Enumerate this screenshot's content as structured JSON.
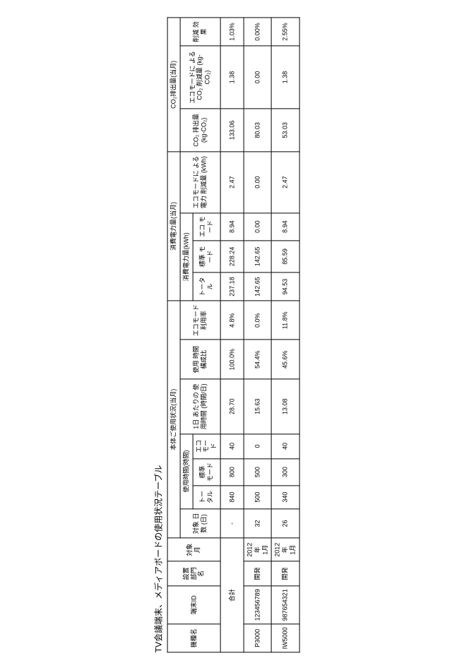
{
  "title": "TV会議端末、メディアボードの使用状況テーブル",
  "headers": {
    "model": "機種名",
    "terminal_id": "端末ID",
    "dept": "設置\n部門名",
    "month": "対象月",
    "usage_group": "本体ご使用状況(当月)",
    "days": "対象\n日数\n(日)",
    "hours_group": "使用時間(時間)",
    "total": "トータル",
    "std_mode": "標準\nモード",
    "eco_mode": "エコ\nモード",
    "per_day": "1日\nあたりの\n使用時間\n(時間/日)",
    "ratio": "使用\n時間\n構成比",
    "eco_rate": "エコモード\n利用率",
    "power_group": "消費電力量(当月)",
    "power_kwh": "消費電力量(kWh)",
    "power_save": "エコモードに\nよる電力\n削減量\n(kWh)",
    "co2_group": "CO₂排出量(当月)",
    "co2_emit": "CO₂\n排出量\n(kg-CO₂)",
    "co2_save": "エコモードに\nよるCO₂\n削減量\n(kg-CO₂)",
    "reduce_effect": "削減\n効果"
  },
  "rows": [
    {
      "model": "合計",
      "terminal_id": "",
      "dept": "",
      "month": "",
      "days": "-",
      "h_total": "840",
      "h_std": "800",
      "h_eco": "40",
      "per_day": "28.70",
      "ratio": "100.0%",
      "eco_rate": "4.8%",
      "p_total": "237.18",
      "p_std": "228.24",
      "p_eco": "8.94",
      "p_save": "2.47",
      "co2": "133.06",
      "co2_save": "1.38",
      "effect": "1.03%",
      "merged": true
    },
    {
      "model": "P3000",
      "terminal_id": "123456789",
      "dept": "開発",
      "month": "2012年\n1月",
      "days": "32",
      "h_total": "500",
      "h_std": "500",
      "h_eco": "0",
      "per_day": "15.63",
      "ratio": "54.4%",
      "eco_rate": "0.0%",
      "p_total": "142.65",
      "p_std": "142.65",
      "p_eco": "0.00",
      "p_save": "0.00",
      "co2": "80.03",
      "co2_save": "0.00",
      "effect": "0.00%"
    },
    {
      "model": "IW5000",
      "terminal_id": "987654321",
      "dept": "開発",
      "month": "2012年\n1月",
      "days": "26",
      "h_total": "340",
      "h_std": "300",
      "h_eco": "40",
      "per_day": "13.08",
      "ratio": "45.6%",
      "eco_rate": "11.8%",
      "p_total": "94.53",
      "p_std": "85.59",
      "p_eco": "8.94",
      "p_save": "2.47",
      "co2": "53.03",
      "co2_save": "1.38",
      "effect": "2.55%"
    }
  ]
}
